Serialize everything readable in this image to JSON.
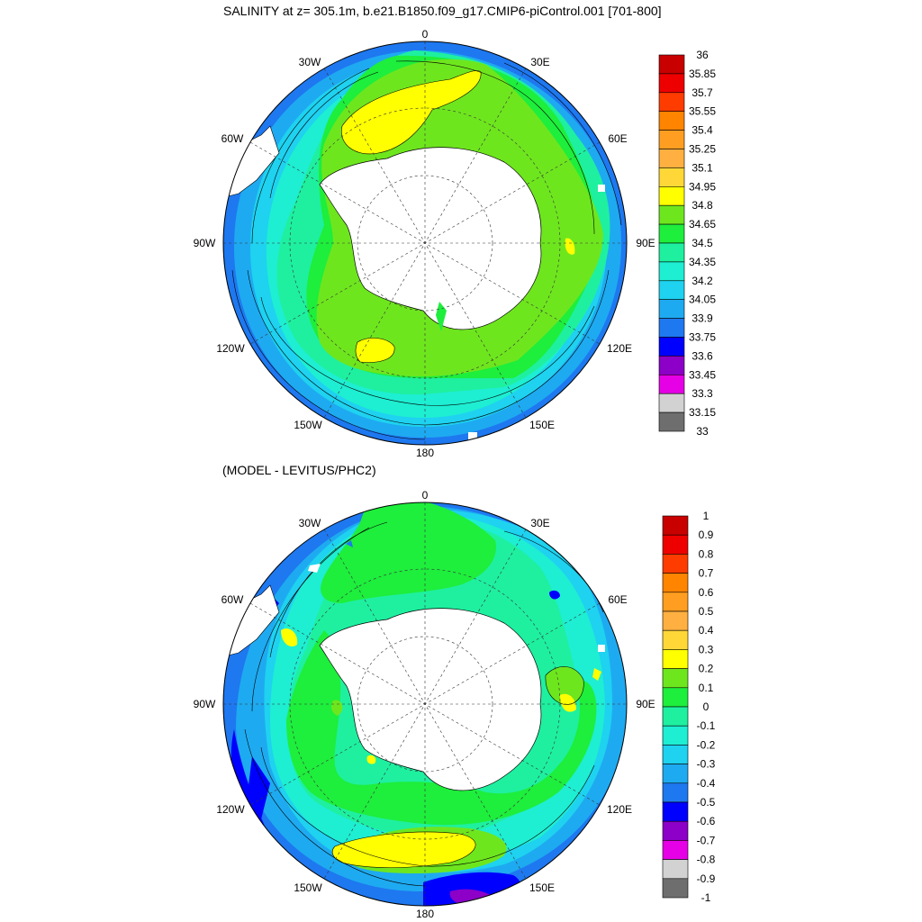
{
  "titles": {
    "top": "SALINITY at z= 305.1m, b.e21.B1850.f09_g17.CMIP6-piControl.001 [701-800]",
    "bottom": "(MODEL - LEVITUS/PHC2)"
  },
  "longitude_labels": {
    "top": "0",
    "bottom": "180",
    "w30": "30W",
    "e30": "30E",
    "w60": "60W",
    "e60": "60E",
    "w90": "90W",
    "e90": "90E",
    "w120": "120W",
    "e120": "120E",
    "w150": "150W",
    "e150": "150E"
  },
  "salinity_colorbar": {
    "labels": [
      "36",
      "35.85",
      "35.7",
      "35.55",
      "35.4",
      "35.25",
      "35.1",
      "34.95",
      "34.8",
      "34.65",
      "34.5",
      "34.35",
      "34.2",
      "34.05",
      "33.9",
      "33.75",
      "33.6",
      "33.45",
      "33.3",
      "33.15",
      "33"
    ],
    "colors": [
      "#c80000",
      "#ee0000",
      "#ff3c00",
      "#ff8400",
      "#ff9e20",
      "#ffb040",
      "#ffd838",
      "#ffff00",
      "#6ee61e",
      "#1eee3c",
      "#1ef0a0",
      "#1eeed2",
      "#1ed2f0",
      "#1eaaf0",
      "#1e78f0",
      "#0000ff",
      "#8c00c8",
      "#e600e6",
      "#d2d2d2",
      "#6e6e6e"
    ]
  },
  "difference_colorbar": {
    "labels": [
      "1",
      "0.9",
      "0.8",
      "0.7",
      "0.6",
      "0.5",
      "0.4",
      "0.3",
      "0.2",
      "0.1",
      "0",
      "-0.1",
      "-0.2",
      "-0.3",
      "-0.4",
      "-0.5",
      "-0.6",
      "-0.7",
      "-0.8",
      "-0.9",
      "-1"
    ],
    "colors": [
      "#c80000",
      "#ee0000",
      "#ff3c00",
      "#ff8400",
      "#ff9e20",
      "#ffb040",
      "#ffd838",
      "#ffff00",
      "#6ee61e",
      "#1eee3c",
      "#1ef0a0",
      "#1eeed2",
      "#1ed2f0",
      "#1eaaf0",
      "#1e78f0",
      "#0000ff",
      "#8c00c8",
      "#e600e6",
      "#d2d2d2",
      "#6e6e6e"
    ]
  }
}
